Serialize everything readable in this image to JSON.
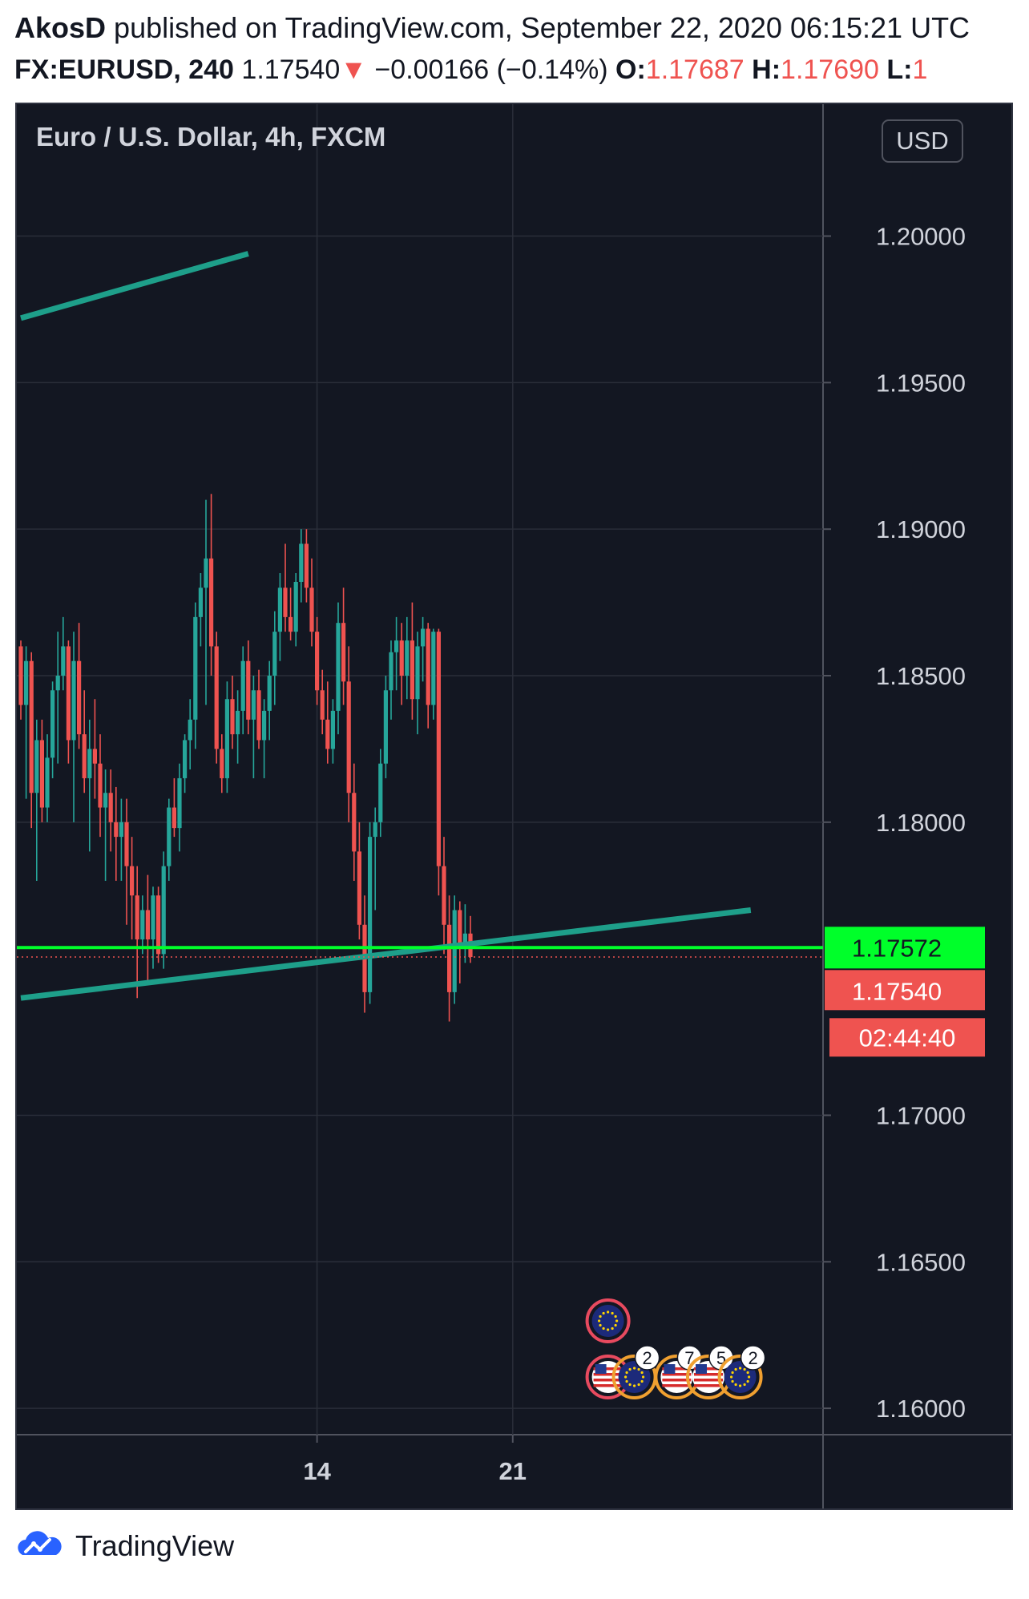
{
  "header": {
    "author": "AkosD",
    "published_text": "published on TradingView.com, September 22, 2020 06:15:21 UTC",
    "symbol": "FX:EURUSD, 240",
    "last_price": "1.17540",
    "change_arrow": "▼",
    "change": "−0.00166 (−0.14%)",
    "open_label": "O:",
    "open_value": "1.17687",
    "high_label": "H:",
    "high_value": "1.17690",
    "low_label": "L:",
    "low_value": "1"
  },
  "chart_data": {
    "type": "candlestick",
    "title": "Euro / U.S. Dollar, 4h, FXCM",
    "currency_badge": "USD",
    "ylim": [
      1.1591,
      1.2045
    ],
    "y_ticks": [
      "1.20000",
      "1.19500",
      "1.19000",
      "1.18500",
      "1.18000",
      "1.17000",
      "1.16500",
      "1.16000"
    ],
    "x_ticks": [
      {
        "label": "14",
        "bar": 56
      },
      {
        "label": "21",
        "bar": 93
      }
    ],
    "colors": {
      "up": "#26a69a",
      "down": "#ef5350",
      "background": "#131722",
      "grid": "#2a2e39",
      "trendline": "#1e9f8a",
      "horizontal_line": "#00ff2a",
      "axis_text": "#d1d4dc"
    },
    "candles": [
      [
        1.186,
        1.1862,
        1.1835,
        1.184
      ],
      [
        1.184,
        1.186,
        1.1808,
        1.1855
      ],
      [
        1.1855,
        1.1858,
        1.1798,
        1.181
      ],
      [
        1.181,
        1.1835,
        1.178,
        1.1828
      ],
      [
        1.1828,
        1.1835,
        1.18,
        1.1805
      ],
      [
        1.1805,
        1.183,
        1.18,
        1.1822
      ],
      [
        1.1822,
        1.1848,
        1.1815,
        1.1845
      ],
      [
        1.1845,
        1.1865,
        1.182,
        1.185
      ],
      [
        1.185,
        1.187,
        1.1845,
        1.186
      ],
      [
        1.186,
        1.1862,
        1.182,
        1.1828
      ],
      [
        1.1828,
        1.1865,
        1.18,
        1.1855
      ],
      [
        1.1855,
        1.1868,
        1.1825,
        1.183
      ],
      [
        1.183,
        1.1845,
        1.181,
        1.1815
      ],
      [
        1.1815,
        1.1835,
        1.179,
        1.1825
      ],
      [
        1.1825,
        1.1842,
        1.1808,
        1.182
      ],
      [
        1.182,
        1.183,
        1.1795,
        1.1805
      ],
      [
        1.1805,
        1.1818,
        1.178,
        1.181
      ],
      [
        1.181,
        1.1818,
        1.179,
        1.18
      ],
      [
        1.18,
        1.1812,
        1.178,
        1.1795
      ],
      [
        1.1795,
        1.1808,
        1.178,
        1.18
      ],
      [
        1.18,
        1.1808,
        1.1765,
        1.1785
      ],
      [
        1.1785,
        1.1795,
        1.176,
        1.1775
      ],
      [
        1.1775,
        1.1785,
        1.174,
        1.176
      ],
      [
        1.176,
        1.1775,
        1.1755,
        1.177
      ],
      [
        1.177,
        1.1782,
        1.1745,
        1.176
      ],
      [
        1.176,
        1.1778,
        1.175,
        1.1775
      ],
      [
        1.1775,
        1.1778,
        1.1752,
        1.1755
      ],
      [
        1.1755,
        1.179,
        1.175,
        1.1785
      ],
      [
        1.1785,
        1.1808,
        1.178,
        1.1805
      ],
      [
        1.1805,
        1.1815,
        1.1795,
        1.1798
      ],
      [
        1.1798,
        1.182,
        1.179,
        1.1815
      ],
      [
        1.1815,
        1.183,
        1.181,
        1.1828
      ],
      [
        1.1828,
        1.1842,
        1.1818,
        1.1835
      ],
      [
        1.1835,
        1.1875,
        1.1825,
        1.187
      ],
      [
        1.187,
        1.1885,
        1.186,
        1.188
      ],
      [
        1.188,
        1.191,
        1.184,
        1.189
      ],
      [
        1.189,
        1.1912,
        1.185,
        1.186
      ],
      [
        1.186,
        1.1865,
        1.182,
        1.1825
      ],
      [
        1.1825,
        1.183,
        1.181,
        1.1815
      ],
      [
        1.1815,
        1.1848,
        1.181,
        1.1842
      ],
      [
        1.1842,
        1.185,
        1.1825,
        1.183
      ],
      [
        1.183,
        1.1845,
        1.182,
        1.1838
      ],
      [
        1.1838,
        1.186,
        1.183,
        1.1855
      ],
      [
        1.1855,
        1.1862,
        1.183,
        1.1835
      ],
      [
        1.1835,
        1.185,
        1.1815,
        1.1845
      ],
      [
        1.1845,
        1.1852,
        1.1825,
        1.1828
      ],
      [
        1.1828,
        1.1842,
        1.1815,
        1.1838
      ],
      [
        1.1838,
        1.1855,
        1.1828,
        1.185
      ],
      [
        1.185,
        1.1872,
        1.184,
        1.1865
      ],
      [
        1.1865,
        1.1885,
        1.1855,
        1.188
      ],
      [
        1.188,
        1.1895,
        1.1865,
        1.187
      ],
      [
        1.187,
        1.188,
        1.1862,
        1.1865
      ],
      [
        1.1865,
        1.1885,
        1.186,
        1.1882
      ],
      [
        1.1882,
        1.19,
        1.1875,
        1.1895
      ],
      [
        1.1895,
        1.19,
        1.1875,
        1.188
      ],
      [
        1.188,
        1.189,
        1.186,
        1.1865
      ],
      [
        1.1865,
        1.187,
        1.184,
        1.1845
      ],
      [
        1.1845,
        1.1852,
        1.183,
        1.1835
      ],
      [
        1.1835,
        1.1848,
        1.182,
        1.1825
      ],
      [
        1.1825,
        1.1842,
        1.182,
        1.1838
      ],
      [
        1.1838,
        1.1875,
        1.183,
        1.1868
      ],
      [
        1.1868,
        1.188,
        1.184,
        1.1848
      ],
      [
        1.1848,
        1.186,
        1.18,
        1.181
      ],
      [
        1.181,
        1.182,
        1.178,
        1.179
      ],
      [
        1.179,
        1.18,
        1.176,
        1.1765
      ],
      [
        1.1765,
        1.1775,
        1.1735,
        1.1742
      ],
      [
        1.1742,
        1.18,
        1.1738,
        1.1795
      ],
      [
        1.1795,
        1.1805,
        1.177,
        1.18
      ],
      [
        1.18,
        1.1825,
        1.1795,
        1.182
      ],
      [
        1.182,
        1.185,
        1.1815,
        1.1845
      ],
      [
        1.1845,
        1.1862,
        1.1835,
        1.1858
      ],
      [
        1.1858,
        1.187,
        1.1845,
        1.1862
      ],
      [
        1.1862,
        1.1868,
        1.184,
        1.185
      ],
      [
        1.185,
        1.187,
        1.1842,
        1.1862
      ],
      [
        1.1862,
        1.1875,
        1.1835,
        1.1842
      ],
      [
        1.1842,
        1.1865,
        1.183,
        1.186
      ],
      [
        1.186,
        1.187,
        1.1848,
        1.1866
      ],
      [
        1.1866,
        1.1868,
        1.1832,
        1.184
      ],
      [
        1.184,
        1.1866,
        1.1835,
        1.1865
      ],
      [
        1.1865,
        1.1866,
        1.1775,
        1.1785
      ],
      [
        1.1785,
        1.1795,
        1.1755,
        1.1765
      ],
      [
        1.1765,
        1.1775,
        1.1732,
        1.1742
      ],
      [
        1.1742,
        1.1775,
        1.1738,
        1.177
      ],
      [
        1.177,
        1.1773,
        1.1745,
        1.1758
      ],
      [
        1.1758,
        1.1772,
        1.1752,
        1.1762
      ],
      [
        1.1762,
        1.1768,
        1.1752,
        1.1754
      ]
    ],
    "candle_bar_start": 0,
    "trendlines": [
      {
        "from": {
          "bar": 0,
          "price": 1.1972
        },
        "to": {
          "bar": 43,
          "price": 1.1994
        }
      },
      {
        "from": {
          "bar": 0,
          "price": 1.174
        },
        "to": {
          "bar": 138,
          "price": 1.177
        }
      }
    ],
    "horizontal_line": {
      "price": 1.17572,
      "label": "1.17572"
    },
    "last_price_line": {
      "price": 1.1754,
      "label": "1.17540"
    },
    "countdown": "02:44:40",
    "events": [
      {
        "type": "flag-eu",
        "bar": 111,
        "row": 1
      },
      {
        "type": "flag-us",
        "bar": 111,
        "row": 2
      },
      {
        "type": "flag-eu",
        "bar": 116,
        "row": 2,
        "count": "2"
      },
      {
        "type": "flag-us",
        "bar": 124,
        "row": 2,
        "count": "7"
      },
      {
        "type": "flag-us",
        "bar": 130,
        "row": 2,
        "count": "5"
      },
      {
        "type": "flag-eu",
        "bar": 136,
        "row": 2,
        "count": "2"
      }
    ]
  },
  "footer": {
    "brand": "TradingView"
  }
}
